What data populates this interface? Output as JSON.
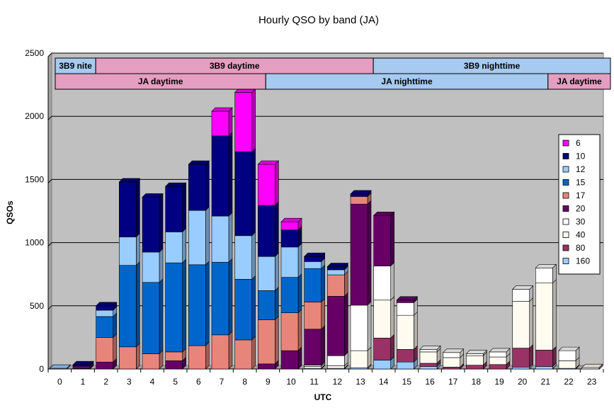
{
  "chart_data": {
    "type": "bar",
    "stacked": true,
    "title": "Hourly QSO by band (JA)",
    "xlabel": "UTC",
    "ylabel": "QSOs",
    "ylim": [
      0,
      2500
    ],
    "yticks": [
      0,
      500,
      1000,
      1500,
      2000,
      2500
    ],
    "grid": true,
    "legend_position": "right",
    "categories": [
      "0",
      "1",
      "2",
      "3",
      "4",
      "5",
      "6",
      "7",
      "8",
      "9",
      "10",
      "11",
      "12",
      "13",
      "14",
      "15",
      "16",
      "17",
      "18",
      "19",
      "20",
      "21",
      "22",
      "23"
    ],
    "series": [
      {
        "name": "160",
        "color": "#99ccff",
        "values": [
          5,
          3,
          0,
          0,
          0,
          0,
          0,
          0,
          0,
          0,
          0,
          5,
          5,
          10,
          70,
          55,
          20,
          0,
          0,
          0,
          15,
          20,
          5,
          0
        ]
      },
      {
        "name": "80",
        "color": "#993366",
        "values": [
          0,
          0,
          0,
          0,
          0,
          0,
          0,
          0,
          0,
          0,
          0,
          0,
          0,
          0,
          175,
          100,
          25,
          15,
          30,
          35,
          150,
          130,
          0,
          0
        ]
      },
      {
        "name": "40",
        "color": "#fffbf0",
        "values": [
          0,
          0,
          0,
          0,
          0,
          0,
          0,
          0,
          0,
          0,
          0,
          15,
          20,
          135,
          300,
          270,
          90,
          75,
          75,
          60,
          370,
          530,
          60,
          10
        ]
      },
      {
        "name": "30",
        "color": "#ffffff",
        "values": [
          0,
          0,
          0,
          0,
          0,
          0,
          0,
          0,
          0,
          0,
          0,
          10,
          80,
          360,
          270,
          100,
          20,
          40,
          15,
          40,
          95,
          120,
          80,
          0
        ]
      },
      {
        "name": "20",
        "color": "#660066",
        "values": [
          0,
          20,
          55,
          0,
          0,
          65,
          0,
          0,
          0,
          40,
          145,
          285,
          470,
          800,
          400,
          20,
          0,
          0,
          0,
          0,
          0,
          0,
          0,
          0
        ]
      },
      {
        "name": "17",
        "color": "#e8857a",
        "values": [
          0,
          0,
          195,
          175,
          120,
          70,
          185,
          270,
          230,
          350,
          300,
          215,
          170,
          60,
          0,
          0,
          0,
          0,
          0,
          0,
          0,
          0,
          0,
          0
        ]
      },
      {
        "name": "15",
        "color": "#0066cc",
        "values": [
          0,
          0,
          165,
          645,
          565,
          705,
          640,
          575,
          480,
          230,
          280,
          265,
          0,
          0,
          0,
          0,
          0,
          0,
          0,
          0,
          0,
          0,
          0,
          0
        ]
      },
      {
        "name": "12",
        "color": "#99ccff",
        "values": [
          0,
          0,
          50,
          225,
          240,
          245,
          430,
          365,
          345,
          270,
          240,
          55,
          40,
          0,
          0,
          0,
          0,
          0,
          0,
          0,
          0,
          0,
          0,
          0
        ]
      },
      {
        "name": "10",
        "color": "#000080",
        "values": [
          0,
          10,
          35,
          435,
          435,
          360,
          365,
          635,
          665,
          405,
          135,
          40,
          25,
          20,
          0,
          0,
          0,
          0,
          0,
          0,
          0,
          0,
          0,
          0
        ]
      },
      {
        "name": "6",
        "color": "#ff00ff",
        "values": [
          0,
          0,
          0,
          0,
          0,
          0,
          0,
          195,
          470,
          325,
          65,
          0,
          0,
          0,
          0,
          0,
          0,
          0,
          0,
          0,
          0,
          0,
          0,
          0
        ]
      }
    ],
    "banners": [
      {
        "label": "3B9 nite",
        "start": 0,
        "end": 1.75,
        "row": 0,
        "color": "#a6caf0"
      },
      {
        "label": "3B9 daytime",
        "start": 1.75,
        "end": 13.75,
        "row": 0,
        "color": "#e39ec1"
      },
      {
        "label": "3B9 nighttime",
        "start": 13.75,
        "end": 24,
        "row": 0,
        "color": "#a6caf0"
      },
      {
        "label": "JA daytime",
        "start": 0,
        "end": 9.1,
        "row": 1,
        "color": "#e39ec1"
      },
      {
        "label": "JA nighttime",
        "start": 9.1,
        "end": 21.3,
        "row": 1,
        "color": "#a6caf0"
      },
      {
        "label": "JA daytime",
        "start": 21.3,
        "end": 24,
        "row": 1,
        "color": "#e39ec1"
      }
    ]
  }
}
